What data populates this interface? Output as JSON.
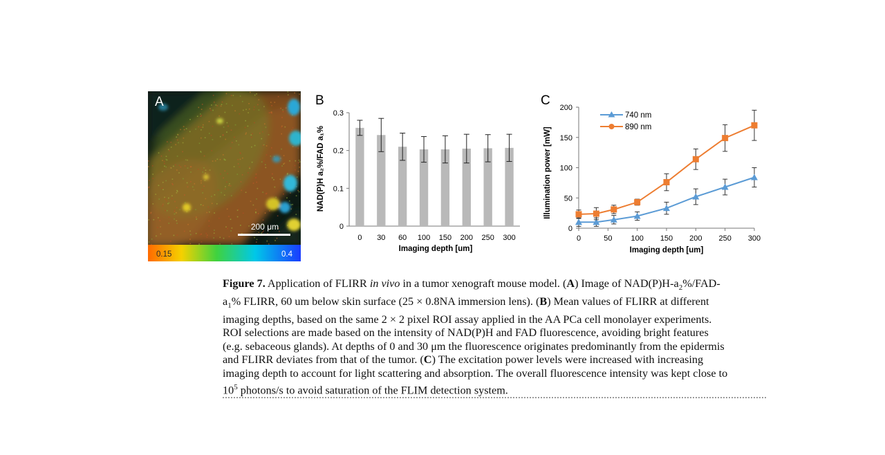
{
  "panel_a": {
    "letter": "A",
    "scale_bar_label": "200 μm",
    "colorbar_min": "0.15",
    "colorbar_max": "0.4"
  },
  "chart_data": [
    {
      "panel": "B",
      "type": "bar",
      "title": "",
      "xlabel": "Imaging depth [um]",
      "ylabel": "NAD(P)H a₂%/FAD a₁%",
      "categories": [
        "0",
        "30",
        "60",
        "100",
        "150",
        "200",
        "250",
        "300"
      ],
      "values": [
        0.26,
        0.241,
        0.21,
        0.203,
        0.203,
        0.205,
        0.206,
        0.207
      ],
      "errors": [
        0.02,
        0.044,
        0.036,
        0.034,
        0.036,
        0.038,
        0.036,
        0.036
      ],
      "ylim": [
        0,
        0.3
      ],
      "yticks": [
        "0",
        "0.1",
        "0.2",
        "0.3"
      ],
      "bar_color": "#b9b9b9",
      "grid": false
    },
    {
      "panel": "C",
      "type": "line",
      "title": "",
      "xlabel": "Imaging depth [um]",
      "ylabel": "Illumination power [mW]",
      "x": [
        0,
        30,
        60,
        100,
        150,
        200,
        250,
        300
      ],
      "xticks": [
        "0",
        "50",
        "100",
        "150",
        "200",
        "250",
        "300"
      ],
      "yticks": [
        "0",
        "50",
        "100",
        "150",
        "200"
      ],
      "xlim": [
        0,
        300
      ],
      "ylim": [
        0,
        200
      ],
      "series": [
        {
          "name": "740 nm",
          "values": [
            10,
            10,
            14,
            20,
            33,
            52,
            68,
            84
          ],
          "errors": [
            7,
            7,
            7,
            7,
            10,
            13,
            13,
            16
          ],
          "color": "#5b9bd5",
          "marker": "triangle"
        },
        {
          "name": "890 nm",
          "values": [
            23,
            24,
            31,
            43,
            76,
            114,
            149,
            170
          ],
          "errors": [
            7,
            10,
            7,
            5,
            14,
            17,
            22,
            25
          ],
          "color": "#ed7d31",
          "marker": "square"
        }
      ],
      "legend": "top-left",
      "grid": false
    }
  ],
  "caption": {
    "label": "Figure 7.",
    "lines": [
      [
        {
          "t": "Figure 7.",
          "s": "b"
        },
        {
          "t": "  Application of FLIRR "
        },
        {
          "t": "in vivo",
          "s": "i"
        },
        {
          "t": " in a tumor xenograft mouse model. ("
        },
        {
          "t": "A",
          "s": "b"
        },
        {
          "t": ") Image of NAD(P)H-a"
        },
        {
          "t": "2",
          "s": "sub"
        },
        {
          "t": "%/FAD-"
        }
      ],
      [
        {
          "t": "a"
        },
        {
          "t": "1",
          "s": "sub"
        },
        {
          "t": "% FLIRR, 60 um below skin surface (25 × 0.8NA immersion lens). ("
        },
        {
          "t": "B",
          "s": "b"
        },
        {
          "t": ") Mean values of FLIRR at different"
        }
      ],
      [
        {
          "t": "imaging depths, based on the same 2 × 2 pixel ROI assay applied in the AA PCa cell monolayer experiments."
        }
      ],
      [
        {
          "t": "ROI selections are made based on the intensity of NAD(P)H and FAD fluorescence, avoiding bright features"
        }
      ],
      [
        {
          "t": "(e.g. sebaceous glands). At depths of 0 and 30 μm the fluorescence originates predominantly from the epidermis"
        }
      ],
      [
        {
          "t": "and FLIRR deviates from that of the tumor. ("
        },
        {
          "t": "C",
          "s": "b"
        },
        {
          "t": ") The excitation power levels were increased with increasing"
        }
      ],
      [
        {
          "t": "imaging depth to account for light scattering and absorption. The overall fluorescence intensity was kept close to"
        }
      ],
      [
        {
          "t": "10"
        },
        {
          "t": "5",
          "s": "sup"
        },
        {
          "t": " photons/s to avoid saturation of the FLIM detection system."
        }
      ]
    ]
  }
}
